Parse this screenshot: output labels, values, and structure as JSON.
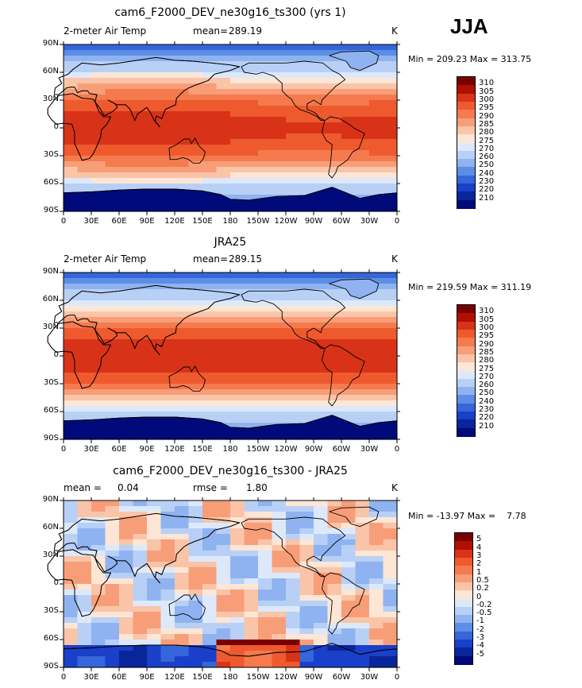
{
  "season_label": "JJA",
  "panels": [
    {
      "id": "model",
      "title": "cam6_F2000_DEV_ne30g16_ts300 (yrs 1)",
      "variable": "2-meter Air Temp",
      "stat_left_label": "mean=",
      "stat_left_value": "289.19",
      "stat_right_label": "",
      "stat_right_value": "",
      "units": "K",
      "minmax": "Min = 209.23 Max = 313.75",
      "kind": "abs"
    },
    {
      "id": "obs",
      "title": "JRA25",
      "variable": "2-meter Air Temp",
      "stat_left_label": "mean=",
      "stat_left_value": "289.15",
      "stat_right_label": "",
      "stat_right_value": "",
      "units": "K",
      "minmax": "Min = 219.59 Max = 311.19",
      "kind": "abs"
    },
    {
      "id": "diff",
      "title": "cam6_F2000_DEV_ne30g16_ts300 - JRA25",
      "variable": "",
      "stat_left_label": "mean =",
      "stat_left_value": "0.04",
      "stat_right_label": "rmse =",
      "stat_right_value": "1.80",
      "units": "K",
      "minmax": "Min = -13.97 Max =    7.78",
      "kind": "diff"
    }
  ],
  "x_ticks": [
    "0",
    "30E",
    "60E",
    "90E",
    "120E",
    "150E",
    "180",
    "150W",
    "120W",
    "90W",
    "60W",
    "30W",
    "0"
  ],
  "y_ticks": [
    "90N",
    "60N",
    "30N",
    "0",
    "30S",
    "60S",
    "90S"
  ],
  "colorbars": {
    "abs": {
      "labels": [
        "310",
        "305",
        "300",
        "295",
        "290",
        "285",
        "280",
        "275",
        "270",
        "260",
        "250",
        "240",
        "230",
        "220",
        "210"
      ],
      "colors": [
        "#7a0000",
        "#b01000",
        "#d83318",
        "#ee5a2e",
        "#f57a4e",
        "#f79e78",
        "#fac4a8",
        "#fde6d5",
        "#dde9fa",
        "#b8d0f6",
        "#8fb3f0",
        "#5d8ee6",
        "#3566da",
        "#1a3fc8",
        "#08259a",
        "#000a7a"
      ]
    },
    "diff": {
      "labels": [
        "5",
        "4",
        "3",
        "2",
        "1",
        "0.5",
        "0.2",
        "0",
        "-0.2",
        "-0.5",
        "-1",
        "-2",
        "-3",
        "-4",
        "-5"
      ],
      "colors": [
        "#7a0000",
        "#b01000",
        "#d83318",
        "#ee5a2e",
        "#f57a4e",
        "#f79e78",
        "#fac4a8",
        "#fde6d5",
        "#dde9fa",
        "#b8d0f6",
        "#8fb3f0",
        "#5d8ee6",
        "#3566da",
        "#1a3fc8",
        "#08259a",
        "#000a7a"
      ]
    }
  }
}
